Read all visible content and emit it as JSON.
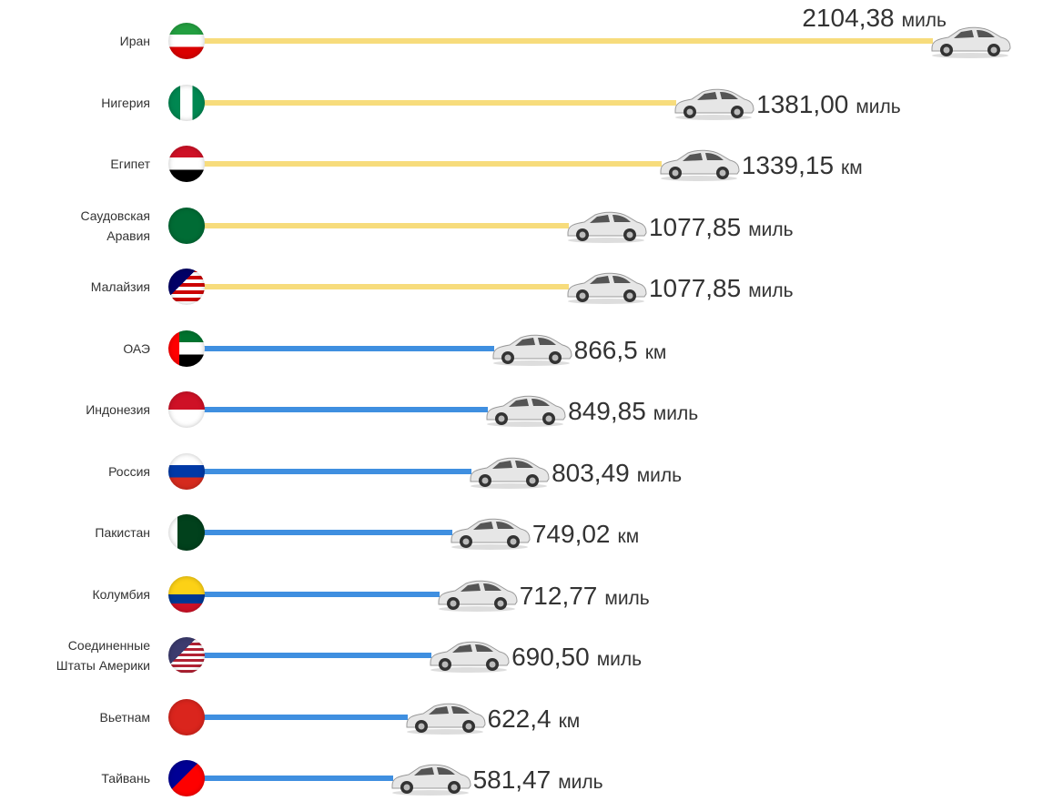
{
  "chart_data": {
    "type": "bar",
    "orientation": "horizontal",
    "categories": [
      "Иран",
      "Нигерия",
      "Египет",
      "Саудовская Аравия",
      "Малайзия",
      "ОАЭ",
      "Индонезия",
      "Россия",
      "Пакистан",
      "Колумбия",
      "Соединенные Штаты Америки",
      "Вьетнам",
      "Тайвань"
    ],
    "values": [
      2104.38,
      1381.0,
      1339.15,
      1077.85,
      1077.85,
      866.5,
      849.85,
      803.49,
      749.02,
      712.77,
      690.5,
      622.4,
      581.47
    ],
    "value_labels": [
      "2104,38",
      "1381,00",
      "1339,15",
      "1077,85",
      "1077,85",
      "866,5",
      "849,85",
      "803,49",
      "749,02",
      "712,77",
      "690,50",
      "622,4",
      "581,47"
    ],
    "units": [
      "миль",
      "миль",
      "км",
      "миль",
      "миль",
      "км",
      "миль",
      "миль",
      "км",
      "миль",
      "миль",
      "км",
      "миль"
    ],
    "colors": [
      "#f7dc7c",
      "#f7dc7c",
      "#f7dc7c",
      "#f7dc7c",
      "#f7dc7c",
      "#3f8fe0",
      "#3f8fe0",
      "#3f8fe0",
      "#3f8fe0",
      "#3f8fe0",
      "#3f8fe0",
      "#3f8fe0",
      "#3f8fe0"
    ]
  }
}
